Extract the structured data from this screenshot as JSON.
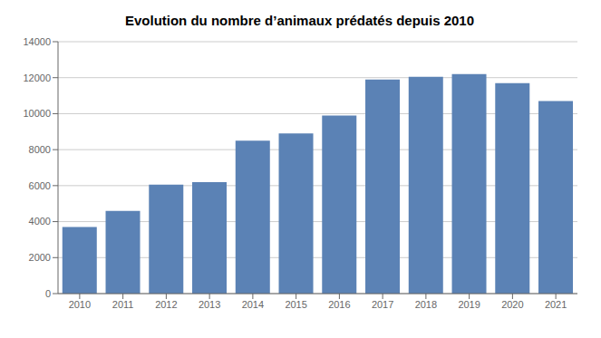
{
  "chart_data": {
    "type": "bar",
    "title": "Evolution du nombre d’animaux prédatés depuis 2010",
    "categories": [
      "2010",
      "2011",
      "2012",
      "2013",
      "2014",
      "2015",
      "2016",
      "2017",
      "2018",
      "2019",
      "2020",
      "2021"
    ],
    "values": [
      3700,
      4600,
      6050,
      6200,
      8500,
      8900,
      9900,
      11900,
      12050,
      12200,
      11700,
      10700
    ],
    "color": "#5b82b5",
    "ylim": [
      0,
      14000
    ],
    "yticks": [
      0,
      2000,
      4000,
      6000,
      8000,
      10000,
      12000,
      14000
    ],
    "grid": true
  }
}
